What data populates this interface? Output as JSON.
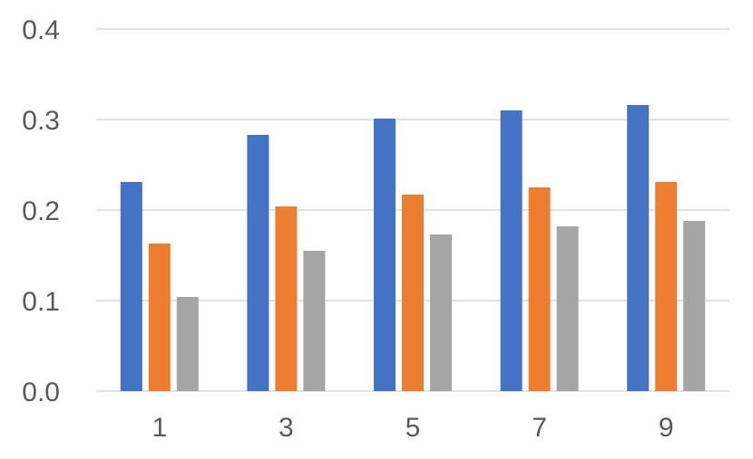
{
  "chart_data": {
    "type": "bar",
    "categories": [
      "1",
      "3",
      "5",
      "7",
      "9"
    ],
    "series": [
      {
        "values": [
          0.231,
          0.283,
          0.301,
          0.31,
          0.316
        ]
      },
      {
        "values": [
          0.163,
          0.204,
          0.217,
          0.225,
          0.231
        ]
      },
      {
        "values": [
          0.104,
          0.155,
          0.173,
          0.182,
          0.188
        ]
      }
    ],
    "ylim": [
      0,
      0.4
    ],
    "yticks": [
      "0.0",
      "0.1",
      "0.2",
      "0.3",
      "0.4"
    ],
    "grid": true,
    "colors": [
      "#4472C4",
      "#ED7D31",
      "#A5A5A5"
    ],
    "gridline_color": "#D9D9D9",
    "axis_label_color": "#595959"
  }
}
